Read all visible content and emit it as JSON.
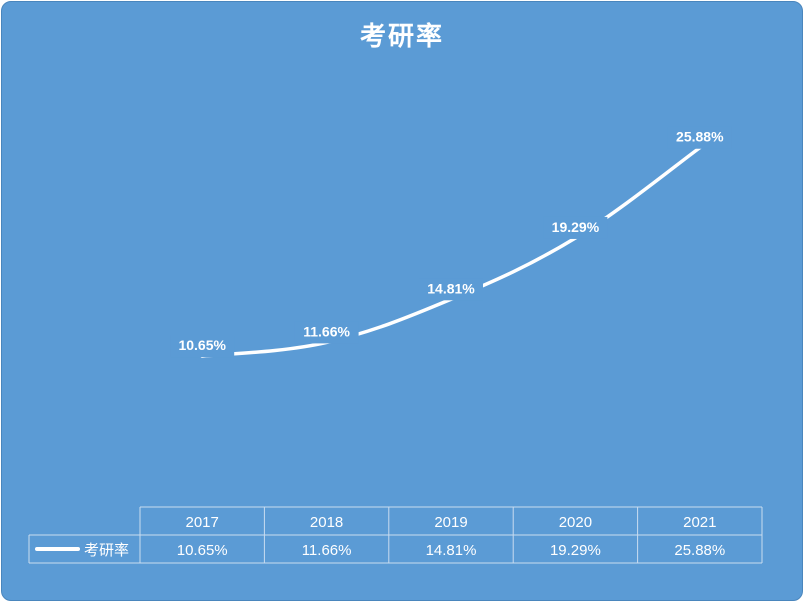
{
  "chart_data": {
    "type": "line",
    "title": "考研率",
    "categories": [
      "2017",
      "2018",
      "2019",
      "2020",
      "2021"
    ],
    "series": [
      {
        "name": "考研率",
        "values": [
          10.65,
          11.66,
          14.81,
          19.29,
          25.88
        ],
        "labels": [
          "10.65%",
          "11.66%",
          "14.81%",
          "19.29%",
          "25.88%"
        ]
      }
    ],
    "data_table": true,
    "legend": "data-table-left",
    "colors": {
      "background": "#5b9bd5",
      "line": "#ffffff",
      "drop_line": "#dce9f6"
    }
  }
}
